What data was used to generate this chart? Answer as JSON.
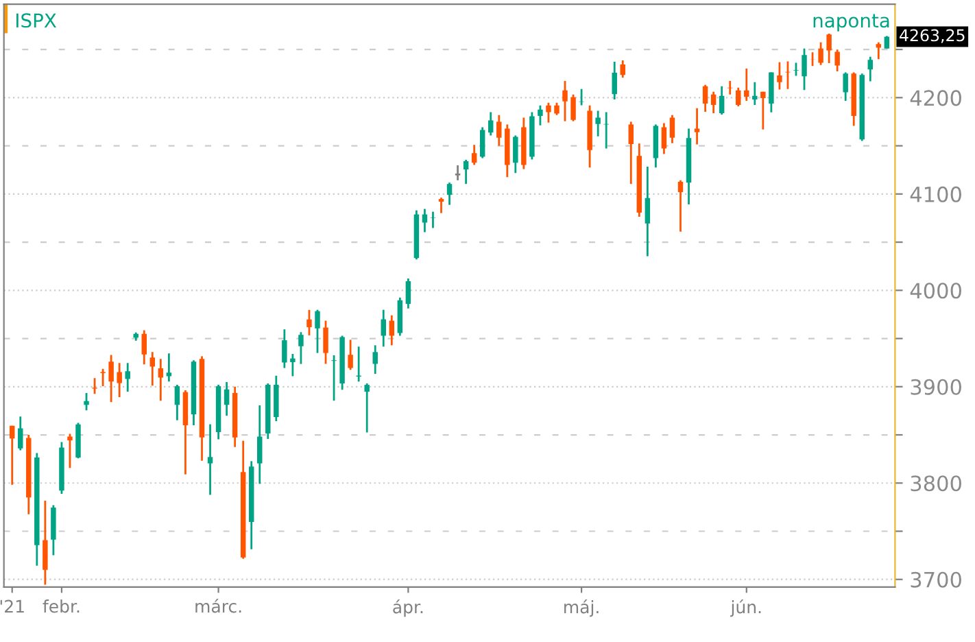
{
  "chart_data": {
    "type": "candlestick",
    "title": "ISPX",
    "subtitle": "naponta",
    "categories": [
      "'21",
      null,
      null,
      null,
      null,
      null,
      "febr.",
      null,
      null,
      null,
      null,
      null,
      null,
      null,
      null,
      null,
      null,
      null,
      null,
      null,
      null,
      null,
      null,
      null,
      null,
      "márc.",
      null,
      null,
      null,
      null,
      null,
      null,
      null,
      null,
      null,
      null,
      null,
      null,
      null,
      null,
      null,
      null,
      null,
      null,
      null,
      null,
      null,
      null,
      "ápr.",
      null,
      null,
      null,
      null,
      null,
      null,
      null,
      null,
      null,
      null,
      null,
      null,
      null,
      null,
      null,
      null,
      null,
      null,
      null,
      null,
      "máj.",
      null,
      null,
      null,
      null,
      null,
      null,
      null,
      null,
      null,
      null,
      null,
      null,
      null,
      null,
      null,
      null,
      null,
      null,
      null,
      "jún.",
      null,
      null,
      null,
      null,
      null,
      null,
      null,
      null,
      null,
      null,
      null,
      null,
      null,
      null,
      null,
      null,
      null
    ],
    "ohlc": [
      [
        3859.5,
        3859.5,
        3798.2,
        3846.3
      ],
      [
        3836,
        3869,
        3834,
        3856.7
      ],
      [
        3846.8,
        3850,
        3767.6,
        3785
      ],
      [
        3735.5,
        3831.2,
        3714.3,
        3826.5
      ],
      [
        3740.7,
        3781.7,
        3694.5,
        3710
      ],
      [
        3741.2,
        3777,
        3725,
        3774.6
      ],
      [
        3792.1,
        3842.5,
        3788.8,
        3836.9
      ],
      [
        3848.2,
        3851,
        3815.7,
        3844.4
      ],
      [
        3826.5,
        3862.4,
        3825.6,
        3860.9
      ],
      [
        3881.2,
        3893.5,
        3875.5,
        3885
      ],
      [
        3899,
        3909,
        3892.5,
        3898
      ],
      [
        3915.2,
        3918.5,
        3900.5,
        3914
      ],
      [
        3926,
        3933,
        3884,
        3905.3
      ],
      [
        3915.2,
        3924.6,
        3889.2,
        3903.8
      ],
      [
        3908,
        3924.6,
        3894.9,
        3916.1
      ],
      [
        3951,
        3956.2,
        3947.7,
        3954.8
      ],
      [
        3954.8,
        3958.5,
        3923.2,
        3933.5
      ],
      [
        3930.2,
        3935.9,
        3901,
        3920.8
      ],
      [
        3919,
        3928.8,
        3885.4,
        3909.5
      ],
      [
        3910.9,
        3934.5,
        3905.3,
        3914.7
      ],
      [
        3881.2,
        3902,
        3865.2,
        3900.5
      ],
      [
        3894.4,
        3896.3,
        3809,
        3860
      ],
      [
        3871.3,
        3927.4,
        3860,
        3926
      ],
      [
        3928.8,
        3931.6,
        3823.2,
        3847.3
      ],
      [
        3820.4,
        3861,
        3787.8,
        3827
      ],
      [
        3852.9,
        3902,
        3845.4,
        3900.5
      ],
      [
        3881.2,
        3904.8,
        3869.9,
        3897.2
      ],
      [
        3893.5,
        3900,
        3837.4,
        3847.3
      ],
      [
        3811.4,
        3843.9,
        3721.4,
        3722.8
      ],
      [
        3759.6,
        3822.7,
        3731.3,
        3817.1
      ],
      [
        3820.4,
        3880.7,
        3799.2,
        3848.2
      ],
      [
        3851.5,
        3903.4,
        3845.8,
        3902
      ],
      [
        3868.5,
        3911.4,
        3864.2,
        3902
      ],
      [
        3925.1,
        3959.5,
        3919.4,
        3948.2
      ],
      [
        3925.5,
        3934,
        3910.9,
        3929.3
      ],
      [
        3942,
        3956.6,
        3923.6,
        3953.8
      ],
      [
        3969.8,
        3979.7,
        3953.3,
        3961.8
      ],
      [
        3960.5,
        3979.8,
        3935,
        3978.4
      ],
      [
        3961.4,
        3968.5,
        3923.7,
        3935
      ],
      [
        3926.8,
        3932.6,
        3885.5,
        3927.5
      ],
      [
        3903.4,
        3952.9,
        3896.8,
        3951.5
      ],
      [
        3933.1,
        3948.7,
        3917.5,
        3919.4
      ],
      [
        3910.5,
        3941.6,
        3905.3,
        3911.5
      ],
      [
        3894.8,
        3903.4,
        3852.5,
        3901.9
      ],
      [
        3923.7,
        3943,
        3913.3,
        3935.9
      ],
      [
        3952.9,
        3979.8,
        3941.6,
        3969.9
      ],
      [
        3968.5,
        3974.1,
        3943,
        3952.9
      ],
      [
        3955.7,
        3992.5,
        3952.9,
        3989.7
      ],
      [
        3985.9,
        4012.3,
        3981.2,
        4009.5
      ],
      [
        4033.5,
        4083,
        4032.1,
        4078.8
      ],
      [
        4070.3,
        4084.5,
        4060.4,
        4078.8
      ],
      [
        4075.1,
        4081.6,
        4064.7,
        4075.5
      ],
      [
        4094.8,
        4096.2,
        4080.2,
        4092
      ],
      [
        4099.1,
        4111.8,
        4088.7,
        4110.4
      ],
      [
        4120.3,
        4129.7,
        4114.2,
        4120.3
      ],
      [
        4125.5,
        4135.4,
        4110.4,
        4134
      ],
      [
        4142.4,
        4150.9,
        4130.2,
        4132.5
      ],
      [
        4138.7,
        4169.3,
        4137.3,
        4166.5
      ],
      [
        4163.7,
        4184.9,
        4160.8,
        4176.4
      ],
      [
        4175,
        4182,
        4150,
        4158.5
      ],
      [
        4167.9,
        4172.1,
        4117.5,
        4130.2
      ],
      [
        4132.5,
        4160.8,
        4121.7,
        4159.4
      ],
      [
        4169.3,
        4179.2,
        4125.9,
        4130.2
      ],
      [
        4138.7,
        4184.9,
        4135.8,
        4180.6
      ],
      [
        4181.1,
        4191.9,
        4171.2,
        4187.7
      ],
      [
        4191.9,
        4194.8,
        4174,
        4184.9
      ],
      [
        4191.9,
        4194.8,
        4182,
        4183.5
      ],
      [
        4207.5,
        4217.4,
        4175.5,
        4196.2
      ],
      [
        4200.4,
        4203.3,
        4175.5,
        4176.9
      ],
      [
        4195.2,
        4208.9,
        4192,
        4195.7
      ],
      [
        4186.3,
        4191.9,
        4127.4,
        4145.7
      ],
      [
        4172.6,
        4186.3,
        4159.9,
        4179.2
      ],
      [
        4172.1,
        4184.9,
        4147.2,
        4172.6
      ],
      [
        4203.7,
        4237.2,
        4198.1,
        4225.9
      ],
      [
        4234.4,
        4238.6,
        4220.7,
        4223.5
      ],
      [
        4172.1,
        4175,
        4110.4,
        4151.9
      ],
      [
        4139.6,
        4152.3,
        4076.4,
        4080.7
      ],
      [
        4069.4,
        4128.3,
        4035.4,
        4095.8
      ],
      [
        4137.3,
        4172.1,
        4127.4,
        4170.7
      ],
      [
        4169.3,
        4173.6,
        4141.5,
        4147.2
      ],
      [
        4179.2,
        4182,
        4152.8,
        4158.5
      ],
      [
        4112.7,
        4114.2,
        4060.9,
        4101.9
      ],
      [
        4111.8,
        4167.9,
        4089.2,
        4158
      ],
      [
        4167.9,
        4189.1,
        4151.4,
        4164.1
      ],
      [
        4211.8,
        4213.2,
        4185.3,
        4193.8
      ],
      [
        4203.3,
        4206.1,
        4183.9,
        4192.4
      ],
      [
        4183.9,
        4211.8,
        4182.5,
        4201.8
      ],
      [
        4210.4,
        4217.4,
        4203.3,
        4209.9
      ],
      [
        4207.5,
        4210.4,
        4191,
        4192.4
      ],
      [
        4207.5,
        4230.1,
        4196.7,
        4200.9
      ],
      [
        4198.1,
        4216,
        4192.4,
        4201.8
      ],
      [
        4206.1,
        4206.1,
        4167,
        4199.5
      ],
      [
        4193.8,
        4226.3,
        4184.8,
        4226.3
      ],
      [
        4223,
        4236.7,
        4208.4,
        4216
      ],
      [
        4226.8,
        4237.6,
        4208.9,
        4226.3
      ],
      [
        4228.2,
        4236.2,
        4222.6,
        4228.7
      ],
      [
        4222.1,
        4250.9,
        4207.9,
        4244.2
      ],
      [
        4239.7,
        4247.1,
        4232.9,
        4239.5
      ],
      [
        4250.9,
        4257.4,
        4233.9,
        4236.2
      ],
      [
        4265.5,
        4266.4,
        4235.8,
        4249
      ],
      [
        4247.5,
        4249.9,
        4227.3,
        4233.4
      ],
      [
        4205.6,
        4226.3,
        4196.6,
        4224.9
      ],
      [
        4224.9,
        4226.3,
        4170.7,
        4181.1
      ],
      [
        4156.6,
        4224.9,
        4155.1,
        4223.5
      ],
      [
        4229.2,
        4242.4,
        4216.9,
        4239.2
      ],
      [
        4255.6,
        4257.4,
        4240,
        4251.8
      ],
      [
        4250.9,
        4264,
        4250.9,
        4263.25
      ]
    ],
    "colors": [
      "#ff5500",
      "#00a383",
      "#ff5500",
      "#00a383",
      "#ff5500",
      "#00a383",
      "#00a383",
      "#ff5500",
      "#00a383",
      "#00a383",
      "#ff5500",
      "#ff5500",
      "#ff5500",
      "#ff5500",
      "#00a383",
      "#00a383",
      "#ff5500",
      "#ff5500",
      "#ff5500",
      "#00a383",
      "#00a383",
      "#ff5500",
      "#00a383",
      "#ff5500",
      "#00a383",
      "#00a383",
      "#00a383",
      "#ff5500",
      "#ff5500",
      "#00a383",
      "#00a383",
      "#00a383",
      "#00a383",
      "#00a383",
      "#00a383",
      "#00a383",
      "#ff5500",
      "#00a383",
      "#ff5500",
      "#00a383",
      "#00a383",
      "#ff5500",
      "#00a383",
      "#00a383",
      "#00a383",
      "#00a383",
      "#ff5500",
      "#00a383",
      "#00a383",
      "#00a383",
      "#00a383",
      "#00a383",
      "#ff5500",
      "#00a383",
      "#808080",
      "#00a383",
      "#ff5500",
      "#00a383",
      "#00a383",
      "#ff5500",
      "#ff5500",
      "#00a383",
      "#ff5500",
      "#00a383",
      "#00a383",
      "#ff5500",
      "#ff5500",
      "#ff5500",
      "#ff5500",
      "#00a383",
      "#ff5500",
      "#00a383",
      "#00a383",
      "#00a383",
      "#ff5500",
      "#ff5500",
      "#ff5500",
      "#00a383",
      "#00a383",
      "#ff5500",
      "#ff5500",
      "#ff5500",
      "#00a383",
      "#ff5500",
      "#ff5500",
      "#ff5500",
      "#00a383",
      "#ff5500",
      "#ff5500",
      "#ff5500",
      "#00a383",
      "#ff5500",
      "#00a383",
      "#ff5500",
      "#ff5500",
      "#00a383",
      "#00a383",
      "#ff5500",
      "#ff5500",
      "#ff5500",
      "#ff5500",
      "#00a383",
      "#ff5500",
      "#00a383",
      "#00a383",
      "#ff5500",
      "#00a383"
    ],
    "ylim": [
      3692,
      4297
    ],
    "yticks": [
      3700,
      {
        "value": 3750,
        "label": null
      },
      3800,
      {
        "value": 3850,
        "label": null
      },
      3900,
      {
        "value": 3950,
        "label": null
      },
      4000,
      {
        "value": 4050,
        "label": null
      },
      4100,
      {
        "value": 4150,
        "label": null
      },
      4200,
      {
        "value": 4250,
        "label": null
      }
    ],
    "grid": "y",
    "annotations": [
      "4263,25"
    ]
  }
}
